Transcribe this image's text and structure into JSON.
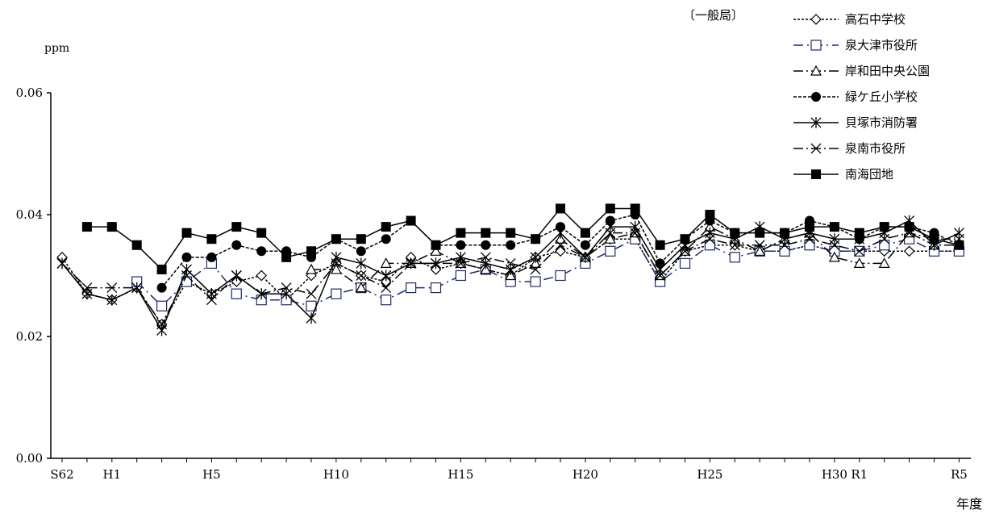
{
  "chart_data": {
    "type": "line",
    "title": "",
    "xlabel": "年度",
    "ylabel": "ppm",
    "category_label": "〔一般局〕",
    "ylim": [
      0,
      0.06
    ],
    "yticks": [
      "0.00",
      "0.02",
      "0.04",
      "0.06"
    ],
    "legend_position": "top-right",
    "grid": false,
    "categories": [
      "S62",
      "S63",
      "H1",
      "H2",
      "H3",
      "H4",
      "H5",
      "H6",
      "H7",
      "H8",
      "H9",
      "H10",
      "H11",
      "H12",
      "H13",
      "H14",
      "H15",
      "H16",
      "H17",
      "H18",
      "H19",
      "H20",
      "H21",
      "H22",
      "H23",
      "H24",
      "H25",
      "H26",
      "H27",
      "H28",
      "H29",
      "H30",
      "R1",
      "R2",
      "R3",
      "R4",
      "R5"
    ],
    "tick_labels": {
      "S62": "S62",
      "H1": "H1",
      "H5": "H5",
      "H10": "H10",
      "H15": "H15",
      "H20": "H20",
      "H25": "H25",
      "H30": "H30",
      "R1": "R1",
      "R5": "R5"
    },
    "series": [
      {
        "name": "高石中学校",
        "color": "#000000",
        "dash": "3,2",
        "marker": "diamond-open",
        "values": [
          0.033,
          0.027,
          0.026,
          0.028,
          0.022,
          0.029,
          0.027,
          0.029,
          0.03,
          0.026,
          0.03,
          0.032,
          0.03,
          0.029,
          0.033,
          0.031,
          0.032,
          0.031,
          0.03,
          0.033,
          0.034,
          0.033,
          0.036,
          0.036,
          0.029,
          0.034,
          0.035,
          0.035,
          0.034,
          0.034,
          0.035,
          0.034,
          0.034,
          0.034,
          0.034,
          0.034,
          0.034
        ]
      },
      {
        "name": "泉大津市役所",
        "color": "#1f2a6b",
        "dash": "12,5,2,5",
        "marker": "square-open",
        "values": [
          null,
          null,
          null,
          0.029,
          0.025,
          0.029,
          0.032,
          0.027,
          0.026,
          0.026,
          0.025,
          0.027,
          0.028,
          0.026,
          0.028,
          0.028,
          0.03,
          0.031,
          0.029,
          0.029,
          0.03,
          0.032,
          0.034,
          0.036,
          0.029,
          0.032,
          0.035,
          0.033,
          0.034,
          0.034,
          0.035,
          0.034,
          0.034,
          0.035,
          0.036,
          0.034,
          0.034
        ]
      },
      {
        "name": "岸和田中央公園",
        "color": "#000000",
        "dash": "12,4,2,4",
        "marker": "triangle-open",
        "values": [
          null,
          null,
          null,
          null,
          null,
          null,
          null,
          null,
          null,
          null,
          0.031,
          0.031,
          0.028,
          0.032,
          0.032,
          0.034,
          0.032,
          0.031,
          0.03,
          0.032,
          0.036,
          0.033,
          0.036,
          0.037,
          0.03,
          0.034,
          0.038,
          0.036,
          0.034,
          0.036,
          0.037,
          0.033,
          0.032,
          0.032,
          0.037,
          0.035,
          0.035
        ]
      },
      {
        "name": "緑ケ丘小学校",
        "color": "#000000",
        "dash": "4,2",
        "marker": "circle-filled",
        "values": [
          null,
          null,
          null,
          null,
          0.028,
          0.033,
          0.033,
          0.035,
          0.034,
          0.034,
          0.033,
          0.036,
          0.034,
          0.036,
          0.039,
          0.035,
          0.035,
          0.035,
          0.035,
          0.036,
          0.038,
          0.035,
          0.039,
          0.04,
          0.032,
          0.036,
          0.039,
          0.037,
          0.037,
          0.037,
          0.039,
          0.038,
          0.036,
          0.038,
          0.038,
          0.037,
          0.035
        ]
      },
      {
        "name": "貝塚市消防署",
        "color": "#000000",
        "dash": "",
        "marker": "asterisk",
        "values": [
          0.032,
          0.027,
          0.026,
          0.028,
          0.021,
          0.031,
          0.027,
          0.03,
          0.027,
          0.027,
          0.023,
          0.033,
          0.032,
          0.03,
          0.032,
          0.032,
          0.033,
          0.032,
          0.031,
          0.033,
          0.037,
          0.033,
          0.038,
          0.038,
          0.031,
          0.035,
          0.037,
          0.036,
          0.038,
          0.036,
          0.037,
          0.036,
          0.036,
          0.037,
          0.039,
          0.035,
          0.037
        ]
      },
      {
        "name": "泉南市役所",
        "color": "#000000",
        "dash": "12,4,2,4",
        "marker": "x",
        "values": [
          0.032,
          0.028,
          0.028,
          0.028,
          0.022,
          0.03,
          0.026,
          0.03,
          0.027,
          0.028,
          0.027,
          0.032,
          0.03,
          0.028,
          0.032,
          0.032,
          0.032,
          0.033,
          0.032,
          0.031,
          0.035,
          0.033,
          0.037,
          0.037,
          0.03,
          0.034,
          0.036,
          0.035,
          0.035,
          0.035,
          0.036,
          0.035,
          0.034,
          0.036,
          0.037,
          0.036,
          0.036
        ]
      },
      {
        "name": "南海団地",
        "color": "#000000",
        "dash": "",
        "marker": "square-filled",
        "values": [
          null,
          0.038,
          0.038,
          0.035,
          0.031,
          0.037,
          0.036,
          0.038,
          0.037,
          0.033,
          0.034,
          0.036,
          0.036,
          0.038,
          0.039,
          0.035,
          0.037,
          0.037,
          0.037,
          0.036,
          0.041,
          0.037,
          0.041,
          0.041,
          0.035,
          0.036,
          0.04,
          0.037,
          0.037,
          0.037,
          0.038,
          0.038,
          0.037,
          0.038,
          0.038,
          0.036,
          0.035
        ]
      }
    ]
  }
}
